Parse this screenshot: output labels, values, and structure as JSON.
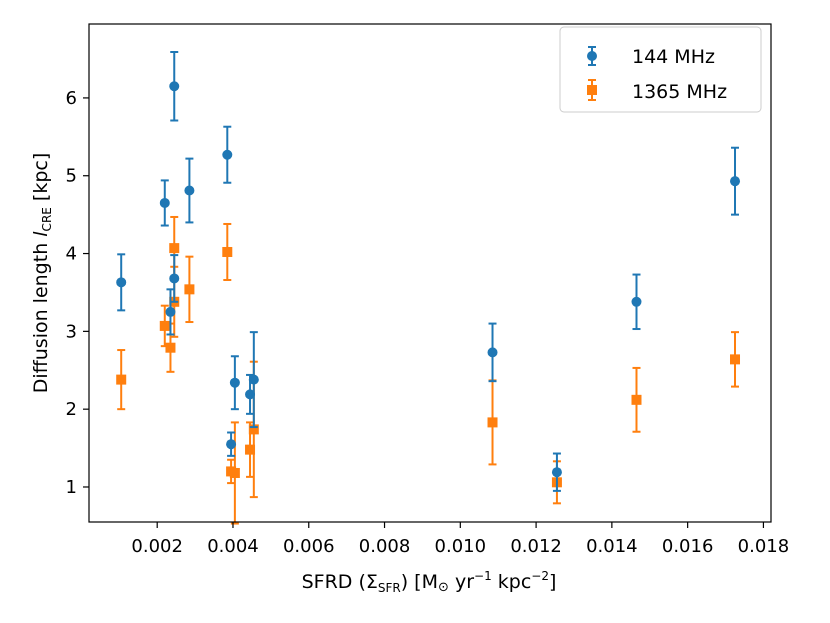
{
  "chart_data": {
    "type": "scatter",
    "title": "",
    "xlabel": "SFRD (Σ_SFR) [M⊙ yr⁻¹ kpc⁻²]",
    "xlabel_parts": {
      "prefix": "SFRD (Σ",
      "sub": "SFR",
      "mid": ") [M",
      "odot": "⊙",
      "yr": " yr",
      "yr_exp": "−1",
      "kpc": " kpc",
      "kpc_exp": "−2",
      "close": "]"
    },
    "ylabel": "Diffusion length l_CRE [kpc]",
    "ylabel_parts": {
      "prefix": "Diffusion length ",
      "italic": "l",
      "sub": "CRE",
      "suffix": " [kpc]"
    },
    "xlim": [
      0.0002,
      0.0182
    ],
    "ylim": [
      0.55,
      6.95
    ],
    "xticks": [
      0.002,
      0.004,
      0.006,
      0.008,
      0.01,
      0.012,
      0.014,
      0.016,
      0.018
    ],
    "xtick_labels": [
      "0.002",
      "0.004",
      "0.006",
      "0.008",
      "0.010",
      "0.012",
      "0.014",
      "0.016",
      "0.018"
    ],
    "yticks": [
      1,
      2,
      3,
      4,
      5,
      6
    ],
    "ytick_labels": [
      "1",
      "2",
      "3",
      "4",
      "5",
      "6"
    ],
    "grid": false,
    "legend_position": "top-right",
    "series": [
      {
        "name": "144 MHz",
        "color": "#1f77b4",
        "marker": "circle",
        "points": [
          {
            "x": 0.00105,
            "y": 3.63,
            "err": 0.36
          },
          {
            "x": 0.0022,
            "y": 4.65,
            "err": 0.29
          },
          {
            "x": 0.00235,
            "y": 3.25,
            "err": 0.29
          },
          {
            "x": 0.00245,
            "y": 6.15,
            "err": 0.44
          },
          {
            "x": 0.00245,
            "y": 3.68,
            "err": 0.3
          },
          {
            "x": 0.00285,
            "y": 4.81,
            "err": 0.41
          },
          {
            "x": 0.00385,
            "y": 5.27,
            "err": 0.36
          },
          {
            "x": 0.00395,
            "y": 1.55,
            "err": 0.15
          },
          {
            "x": 0.00405,
            "y": 2.34,
            "err": 0.34
          },
          {
            "x": 0.00445,
            "y": 2.19,
            "err": 0.25
          },
          {
            "x": 0.00455,
            "y": 2.38,
            "err": 0.61
          },
          {
            "x": 0.01085,
            "y": 2.73,
            "err": 0.37
          },
          {
            "x": 0.01255,
            "y": 1.19,
            "err": 0.24
          },
          {
            "x": 0.01465,
            "y": 3.38,
            "err": 0.35
          },
          {
            "x": 0.01725,
            "y": 4.93,
            "err": 0.43
          }
        ]
      },
      {
        "name": "1365 MHz",
        "color": "#ff7f0e",
        "marker": "square",
        "points": [
          {
            "x": 0.00105,
            "y": 2.38,
            "err": 0.38
          },
          {
            "x": 0.0022,
            "y": 3.07,
            "err": 0.26
          },
          {
            "x": 0.00235,
            "y": 2.79,
            "err": 0.31
          },
          {
            "x": 0.00245,
            "y": 4.07,
            "err": 0.4
          },
          {
            "x": 0.00245,
            "y": 3.38,
            "err": 0.45
          },
          {
            "x": 0.00285,
            "y": 3.54,
            "err": 0.42
          },
          {
            "x": 0.00385,
            "y": 4.02,
            "err": 0.36
          },
          {
            "x": 0.00395,
            "y": 1.2,
            "err": 0.15
          },
          {
            "x": 0.00405,
            "y": 1.18,
            "err": 0.65
          },
          {
            "x": 0.00445,
            "y": 1.48,
            "err": 0.35
          },
          {
            "x": 0.00455,
            "y": 1.74,
            "err": 0.87
          },
          {
            "x": 0.01085,
            "y": 1.83,
            "err": 0.54
          },
          {
            "x": 0.01255,
            "y": 1.06,
            "err": 0.27
          },
          {
            "x": 0.01465,
            "y": 2.12,
            "err": 0.41
          },
          {
            "x": 0.01725,
            "y": 2.64,
            "err": 0.35
          }
        ]
      }
    ]
  }
}
